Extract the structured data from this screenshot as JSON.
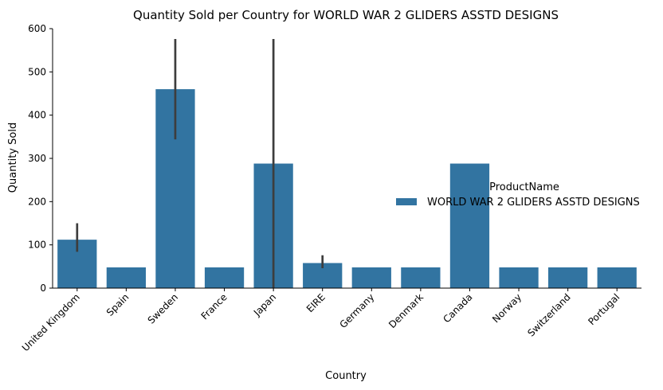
{
  "chart_data": {
    "type": "bar",
    "title": "Quantity Sold per Country for WORLD WAR 2 GLIDERS ASSTD DESIGNS",
    "xlabel": "Country",
    "ylabel": "Quantity Sold",
    "ylim": [
      0,
      600
    ],
    "yticks": [
      0,
      100,
      200,
      300,
      400,
      500,
      600
    ],
    "grid": false,
    "legend": {
      "title": "ProductName",
      "placement": "right"
    },
    "categories": [
      "United Kingdom",
      "Spain",
      "Sweden",
      "France",
      "Japan",
      "EIRE",
      "Germany",
      "Denmark",
      "Canada",
      "Norway",
      "Switzerland",
      "Portugal"
    ],
    "series": [
      {
        "name": "WORLD WAR 2 GLIDERS ASSTD DESIGNS",
        "color": "#3274a1",
        "values": [
          112,
          48,
          460,
          48,
          288,
          58,
          48,
          48,
          288,
          48,
          48,
          48
        ],
        "error_low": [
          84,
          48,
          344,
          48,
          0,
          46,
          48,
          48,
          288,
          48,
          48,
          48
        ],
        "error_high": [
          150,
          48,
          576,
          48,
          576,
          76,
          48,
          48,
          288,
          48,
          48,
          48
        ]
      }
    ]
  }
}
